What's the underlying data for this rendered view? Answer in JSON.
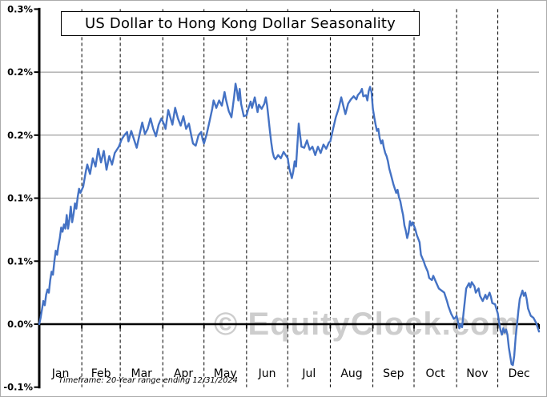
{
  "title": "US Dollar to Hong Kong Dollar Seasonality",
  "watermark": "© EquityClock.com",
  "footnote": "Timeframe: 20-Year range ending 12/31/2024",
  "colors": {
    "line": "#4472C4",
    "gridline": "#8C8C8C",
    "month_gridline": "#000000",
    "axis": "#000000",
    "watermark": "#CDCDCD",
    "background": "#FFFFFF",
    "frame": "#ABABAB"
  },
  "chart_data": {
    "type": "line",
    "title": "US Dollar to Hong Kong Dollar Seasonality",
    "xlabel": "",
    "ylabel": "",
    "x_axis": {
      "unit": "day of year",
      "months": [
        "Jan",
        "Feb",
        "Mar",
        "Apr",
        "May",
        "Jun",
        "Jul",
        "Aug",
        "Sep",
        "Oct",
        "Nov",
        "Dec"
      ],
      "month_start_days": [
        1,
        32,
        60,
        91,
        121,
        152,
        182,
        213,
        244,
        274,
        305,
        335
      ],
      "days_in_year": 365,
      "grid": "dashed vertical line at each month start"
    },
    "y_axis": {
      "unit": "percent",
      "tick_labels": [
        "0.3%",
        "0.2%",
        "0.2%",
        "0.1%",
        "0.1%",
        "0.0%",
        "-0.1%"
      ],
      "tick_values": [
        0.3,
        0.24,
        0.18,
        0.12,
        0.06,
        0.0,
        -0.06
      ],
      "range": [
        -0.06,
        0.3
      ],
      "grid": "solid gray horizontal lines at interior ticks, thick black line at zero"
    },
    "legend": "none",
    "series": [
      {
        "color": "#4472C4",
        "points": [
          [
            1,
            0.0
          ],
          [
            2,
            0.006
          ],
          [
            3,
            0.014
          ],
          [
            4,
            0.022
          ],
          [
            5,
            0.018
          ],
          [
            6,
            0.028
          ],
          [
            7,
            0.033
          ],
          [
            8,
            0.03
          ],
          [
            9,
            0.042
          ],
          [
            10,
            0.05
          ],
          [
            11,
            0.047
          ],
          [
            12,
            0.06
          ],
          [
            13,
            0.07
          ],
          [
            14,
            0.066
          ],
          [
            15,
            0.075
          ],
          [
            16,
            0.082
          ],
          [
            17,
            0.092
          ],
          [
            18,
            0.088
          ],
          [
            19,
            0.095
          ],
          [
            20,
            0.091
          ],
          [
            21,
            0.104
          ],
          [
            22,
            0.091
          ],
          [
            23,
            0.1
          ],
          [
            24,
            0.112
          ],
          [
            25,
            0.097
          ],
          [
            26,
            0.105
          ],
          [
            27,
            0.115
          ],
          [
            28,
            0.11
          ],
          [
            29,
            0.121
          ],
          [
            30,
            0.129
          ],
          [
            31,
            0.125
          ],
          [
            33,
            0.131
          ],
          [
            35,
            0.146
          ],
          [
            36,
            0.152
          ],
          [
            38,
            0.143
          ],
          [
            40,
            0.158
          ],
          [
            42,
            0.15
          ],
          [
            44,
            0.167
          ],
          [
            46,
            0.154
          ],
          [
            48,
            0.165
          ],
          [
            50,
            0.147
          ],
          [
            52,
            0.16
          ],
          [
            54,
            0.152
          ],
          [
            56,
            0.163
          ],
          [
            58,
            0.167
          ],
          [
            59,
            0.169
          ],
          [
            61,
            0.176
          ],
          [
            63,
            0.18
          ],
          [
            65,
            0.183
          ],
          [
            66,
            0.174
          ],
          [
            68,
            0.184
          ],
          [
            70,
            0.176
          ],
          [
            72,
            0.168
          ],
          [
            74,
            0.18
          ],
          [
            76,
            0.192
          ],
          [
            78,
            0.181
          ],
          [
            80,
            0.186
          ],
          [
            82,
            0.196
          ],
          [
            84,
            0.186
          ],
          [
            86,
            0.179
          ],
          [
            88,
            0.19
          ],
          [
            90,
            0.196
          ],
          [
            92,
            0.19
          ],
          [
            93,
            0.186
          ],
          [
            95,
            0.204
          ],
          [
            96,
            0.199
          ],
          [
            98,
            0.19
          ],
          [
            100,
            0.206
          ],
          [
            102,
            0.196
          ],
          [
            104,
            0.189
          ],
          [
            106,
            0.198
          ],
          [
            108,
            0.186
          ],
          [
            110,
            0.191
          ],
          [
            112,
            0.178
          ],
          [
            113,
            0.172
          ],
          [
            115,
            0.17
          ],
          [
            117,
            0.18
          ],
          [
            119,
            0.183
          ],
          [
            120,
            0.176
          ],
          [
            121,
            0.172
          ],
          [
            123,
            0.181
          ],
          [
            125,
            0.193
          ],
          [
            127,
            0.205
          ],
          [
            128,
            0.213
          ],
          [
            130,
            0.206
          ],
          [
            132,
            0.213
          ],
          [
            134,
            0.208
          ],
          [
            136,
            0.221
          ],
          [
            137,
            0.214
          ],
          [
            139,
            0.203
          ],
          [
            141,
            0.197
          ],
          [
            143,
            0.217
          ],
          [
            144,
            0.229
          ],
          [
            145,
            0.222
          ],
          [
            146,
            0.213
          ],
          [
            147,
            0.224
          ],
          [
            148,
            0.21
          ],
          [
            150,
            0.198
          ],
          [
            152,
            0.199
          ],
          [
            153,
            0.204
          ],
          [
            155,
            0.212
          ],
          [
            156,
            0.206
          ],
          [
            158,
            0.216
          ],
          [
            160,
            0.202
          ],
          [
            161,
            0.209
          ],
          [
            163,
            0.205
          ],
          [
            165,
            0.21
          ],
          [
            166,
            0.216
          ],
          [
            167,
            0.208
          ],
          [
            168,
            0.196
          ],
          [
            169,
            0.184
          ],
          [
            170,
            0.173
          ],
          [
            171,
            0.164
          ],
          [
            172,
            0.159
          ],
          [
            173,
            0.157
          ],
          [
            175,
            0.161
          ],
          [
            177,
            0.158
          ],
          [
            179,
            0.164
          ],
          [
            181,
            0.16
          ],
          [
            182,
            0.158
          ],
          [
            183,
            0.149
          ],
          [
            185,
            0.139
          ],
          [
            186,
            0.145
          ],
          [
            187,
            0.155
          ],
          [
            188,
            0.15
          ],
          [
            190,
            0.191
          ],
          [
            191,
            0.18
          ],
          [
            192,
            0.169
          ],
          [
            194,
            0.168
          ],
          [
            196,
            0.175
          ],
          [
            198,
            0.166
          ],
          [
            200,
            0.169
          ],
          [
            202,
            0.161
          ],
          [
            204,
            0.169
          ],
          [
            206,
            0.163
          ],
          [
            208,
            0.171
          ],
          [
            210,
            0.167
          ],
          [
            212,
            0.173
          ],
          [
            213,
            0.174
          ],
          [
            215,
            0.186
          ],
          [
            217,
            0.197
          ],
          [
            219,
            0.205
          ],
          [
            221,
            0.216
          ],
          [
            223,
            0.205
          ],
          [
            224,
            0.2
          ],
          [
            226,
            0.21
          ],
          [
            228,
            0.214
          ],
          [
            230,
            0.217
          ],
          [
            232,
            0.214
          ],
          [
            233,
            0.218
          ],
          [
            235,
            0.221
          ],
          [
            236,
            0.224
          ],
          [
            237,
            0.217
          ],
          [
            239,
            0.218
          ],
          [
            240,
            0.213
          ],
          [
            241,
            0.222
          ],
          [
            242,
            0.226
          ],
          [
            243,
            0.221
          ],
          [
            244,
            0.205
          ],
          [
            245,
            0.197
          ],
          [
            246,
            0.19
          ],
          [
            247,
            0.184
          ],
          [
            248,
            0.186
          ],
          [
            249,
            0.177
          ],
          [
            250,
            0.172
          ],
          [
            251,
            0.175
          ],
          [
            252,
            0.168
          ],
          [
            253,
            0.163
          ],
          [
            254,
            0.16
          ],
          [
            255,
            0.155
          ],
          [
            256,
            0.148
          ],
          [
            257,
            0.143
          ],
          [
            258,
            0.138
          ],
          [
            259,
            0.133
          ],
          [
            260,
            0.129
          ],
          [
            261,
            0.125
          ],
          [
            262,
            0.128
          ],
          [
            263,
            0.121
          ],
          [
            264,
            0.117
          ],
          [
            265,
            0.11
          ],
          [
            266,
            0.104
          ],
          [
            267,
            0.094
          ],
          [
            268,
            0.089
          ],
          [
            269,
            0.082
          ],
          [
            270,
            0.087
          ],
          [
            271,
            0.098
          ],
          [
            272,
            0.094
          ],
          [
            273,
            0.097
          ],
          [
            275,
            0.09
          ],
          [
            276,
            0.085
          ],
          [
            278,
            0.078
          ],
          [
            279,
            0.066
          ],
          [
            281,
            0.06
          ],
          [
            282,
            0.056
          ],
          [
            284,
            0.05
          ],
          [
            285,
            0.044
          ],
          [
            287,
            0.042
          ],
          [
            288,
            0.046
          ],
          [
            290,
            0.04
          ],
          [
            292,
            0.034
          ],
          [
            294,
            0.032
          ],
          [
            296,
            0.03
          ],
          [
            298,
            0.022
          ],
          [
            299,
            0.017
          ],
          [
            301,
            0.01
          ],
          [
            303,
            0.005
          ],
          [
            304,
            0.006
          ],
          [
            305,
            0.008
          ],
          [
            306,
            0.002
          ],
          [
            307,
            -0.004
          ],
          [
            308,
            0.0
          ],
          [
            309,
            -0.003
          ],
          [
            310,
            0.01
          ],
          [
            311,
            0.022
          ],
          [
            312,
            0.034
          ],
          [
            314,
            0.039
          ],
          [
            315,
            0.035
          ],
          [
            316,
            0.04
          ],
          [
            318,
            0.036
          ],
          [
            319,
            0.03
          ],
          [
            321,
            0.034
          ],
          [
            322,
            0.027
          ],
          [
            324,
            0.022
          ],
          [
            326,
            0.028
          ],
          [
            327,
            0.024
          ],
          [
            329,
            0.03
          ],
          [
            330,
            0.026
          ],
          [
            331,
            0.02
          ],
          [
            333,
            0.019
          ],
          [
            335,
            0.01
          ],
          [
            336,
            0.001
          ],
          [
            337,
            -0.006
          ],
          [
            338,
            -0.01
          ],
          [
            339,
            -0.004
          ],
          [
            340,
            -0.008
          ],
          [
            341,
            -0.005
          ],
          [
            342,
            -0.01
          ],
          [
            343,
            -0.022
          ],
          [
            344,
            -0.03
          ],
          [
            345,
            -0.038
          ],
          [
            346,
            -0.039
          ],
          [
            347,
            -0.03
          ],
          [
            348,
            -0.012
          ],
          [
            349,
            0.0
          ],
          [
            350,
            0.013
          ],
          [
            351,
            0.024
          ],
          [
            352,
            0.028
          ],
          [
            353,
            0.032
          ],
          [
            354,
            0.027
          ],
          [
            355,
            0.03
          ],
          [
            356,
            0.024
          ],
          [
            357,
            0.015
          ],
          [
            359,
            0.008
          ],
          [
            361,
            0.006
          ],
          [
            363,
            0.001
          ],
          [
            364,
            -0.003
          ],
          [
            365,
            -0.007
          ]
        ]
      }
    ]
  }
}
